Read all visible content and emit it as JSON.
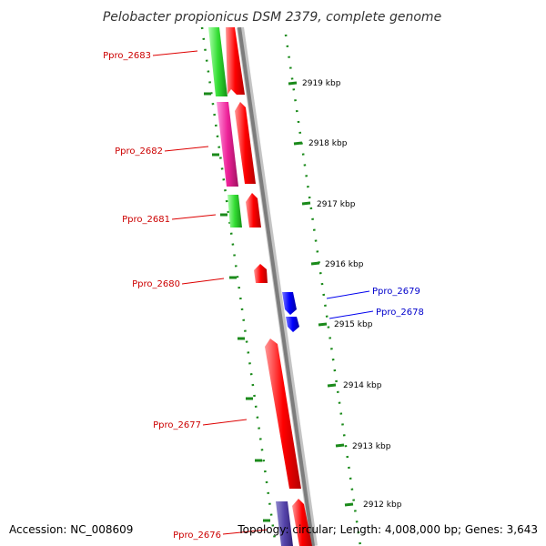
{
  "title": "Pelobacter propionicus DSM 2379, complete genome",
  "footer": {
    "accession": "Accession: NC_008609",
    "topology": "Topology: circular; Length: 4,008,000 bp; Genes: 3,643"
  },
  "ticks": [
    "2919 kbp",
    "2918 kbp",
    "2917 kbp",
    "2916 kbp",
    "2915 kbp",
    "2914 kbp",
    "2913 kbp",
    "2912 kbp"
  ],
  "genes": [
    {
      "label": "Ppro_2683",
      "strand": "reverse",
      "color": "#cc0000"
    },
    {
      "label": "Ppro_2682",
      "strand": "reverse",
      "color": "#cc0000"
    },
    {
      "label": "Ppro_2681",
      "strand": "reverse",
      "color": "#cc0000"
    },
    {
      "label": "Ppro_2680",
      "strand": "reverse",
      "color": "#cc0000"
    },
    {
      "label": "Ppro_2679",
      "strand": "forward",
      "color": "#0000cc"
    },
    {
      "label": "Ppro_2678",
      "strand": "forward",
      "color": "#0000cc"
    },
    {
      "label": "Ppro_2677",
      "strand": "reverse",
      "color": "#cc0000"
    },
    {
      "label": "Ppro_2676",
      "strand": "reverse",
      "color": "#cc0000"
    }
  ],
  "colors": {
    "reverse_gene": "#ff0000",
    "forward_gene": "#0000ff",
    "backbone": "#888888",
    "tick": "#1a8a1a",
    "cog_green": "#33dd33",
    "cog_magenta": "#ee2299",
    "cog_purple": "#5544aa"
  }
}
